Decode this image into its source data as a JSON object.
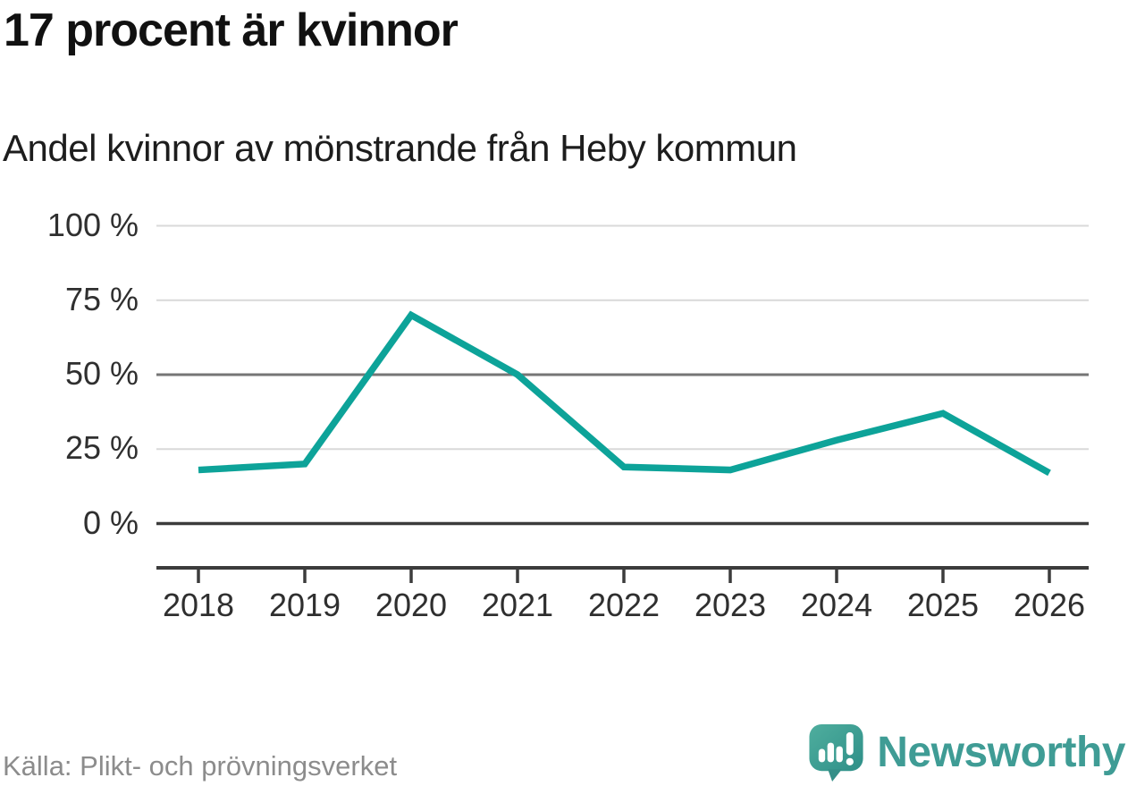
{
  "title": "17 procent är kvinnor",
  "subtitle": "Andel kvinnor av mönstrande från Heby kommun",
  "source": "Källa: Plikt- och prövningsverket",
  "logo": {
    "text": "Newsworthy",
    "icon": "newsworthy-chart-bubble-icon",
    "text_color": "#3f9c95",
    "icon_color_top": "#4fae9e",
    "icon_color_bottom": "#2e8f88"
  },
  "chart_data": {
    "type": "line",
    "title": "17 procent är kvinnor",
    "subtitle": "Andel kvinnor av mönstrande från Heby kommun",
    "categories": [
      "2018",
      "2019",
      "2020",
      "2021",
      "2022",
      "2023",
      "2024",
      "2025",
      "2026"
    ],
    "series": [
      {
        "name": "Andel kvinnor av mönstrande",
        "values": [
          18,
          20,
          70,
          50,
          19,
          18,
          28,
          37,
          17
        ]
      }
    ],
    "unit": "%",
    "xlabel": "",
    "ylabel": "",
    "ylim": [
      0,
      100
    ],
    "yticks": [
      {
        "value": 100,
        "label": "100 %"
      },
      {
        "value": 75,
        "label": "75 %"
      },
      {
        "value": 50,
        "label": "50 %"
      },
      {
        "value": 25,
        "label": "25 %"
      },
      {
        "value": 0,
        "label": "0 %"
      }
    ],
    "grid": true,
    "emphasized_gridlines": [
      0,
      50
    ],
    "legend": "none",
    "line_color": "#0da399",
    "grid_color_light": "#d9d9d9",
    "grid_color_mid": "#757575",
    "axis_color": "#3c3c3c"
  }
}
